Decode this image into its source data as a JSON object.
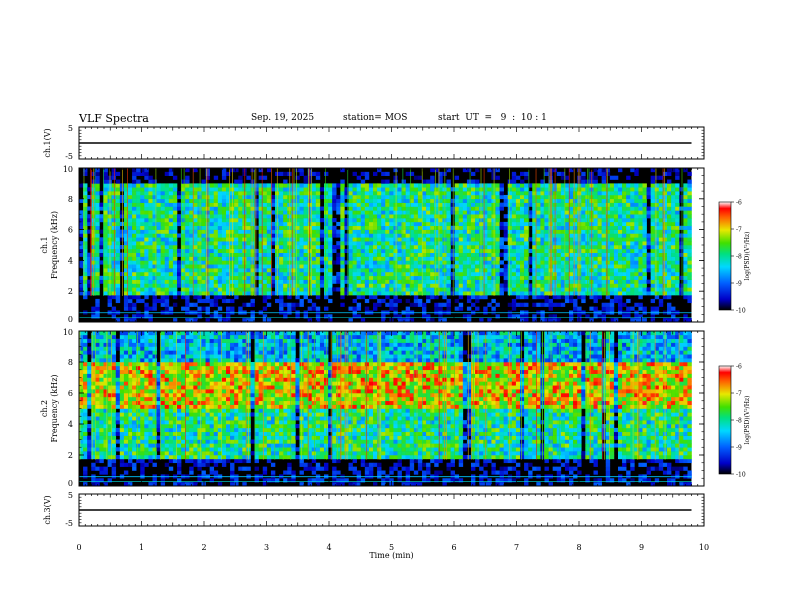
{
  "header": {
    "title": "VLF Spectra",
    "date": "Sep. 19, 2025",
    "station": "station= MOS",
    "start": "start  UT  =   9  :  10 : 1"
  },
  "chart_data": [
    {
      "type": "line",
      "panel": "ch1-waveform",
      "ylabel": "ch.1(V)",
      "ylim": [
        -5,
        5
      ],
      "yticks": [
        "5",
        "-5"
      ],
      "x": [
        0,
        9.8
      ],
      "y": [
        0,
        0
      ],
      "xlim": [
        0,
        10
      ]
    },
    {
      "type": "heatmap",
      "panel": "ch1-spectrogram",
      "ylabel_lines": [
        "ch.1",
        "Frequency  (kHz)"
      ],
      "ylim": [
        0,
        10
      ],
      "yticks": [
        "0",
        "2",
        "4",
        "6",
        "8",
        "10"
      ],
      "xlim": [
        0,
        10
      ],
      "data_xmax": 9.8,
      "colorbar": {
        "label": "log(PSD)(V²/Hz)",
        "range": [
          -10,
          -6
        ],
        "ticks": [
          "-6",
          "-7",
          "-8",
          "-9",
          "-10"
        ]
      },
      "bands": [
        {
          "freq": [
            0,
            1.7
          ],
          "level": -9.8
        },
        {
          "freq": [
            1.7,
            9
          ],
          "level": -8.0
        },
        {
          "freq": [
            9,
            10
          ],
          "level": -10
        }
      ]
    },
    {
      "type": "heatmap",
      "panel": "ch2-spectrogram",
      "ylabel_lines": [
        "ch.2",
        "Frequency  (kHz)"
      ],
      "ylim": [
        0,
        10
      ],
      "yticks": [
        "0",
        "2",
        "4",
        "6",
        "8",
        "10"
      ],
      "xlim": [
        0,
        10
      ],
      "data_xmax": 9.8,
      "colorbar": {
        "label": "log(PSD)(V²/Hz)",
        "range": [
          -10,
          -6
        ],
        "ticks": [
          "-6",
          "-7",
          "-8",
          "-9",
          "-10"
        ]
      },
      "bands": [
        {
          "freq": [
            0,
            1.7
          ],
          "level": -9.8
        },
        {
          "freq": [
            1.7,
            5
          ],
          "level": -8.0
        },
        {
          "freq": [
            5,
            8
          ],
          "level": -7.0
        },
        {
          "freq": [
            8,
            10
          ],
          "level": -8.5
        }
      ]
    },
    {
      "type": "line",
      "panel": "ch3-waveform",
      "ylabel": "ch.3(V)",
      "ylim": [
        -5,
        5
      ],
      "yticks": [
        "5",
        "-5"
      ],
      "x": [
        0,
        9.8
      ],
      "y": [
        0,
        0
      ],
      "xlim": [
        0,
        10
      ]
    }
  ],
  "xaxis": {
    "label": "Time  (min)",
    "ticks": [
      "0",
      "1",
      "2",
      "3",
      "4",
      "5",
      "6",
      "7",
      "8",
      "9",
      "10"
    ]
  }
}
